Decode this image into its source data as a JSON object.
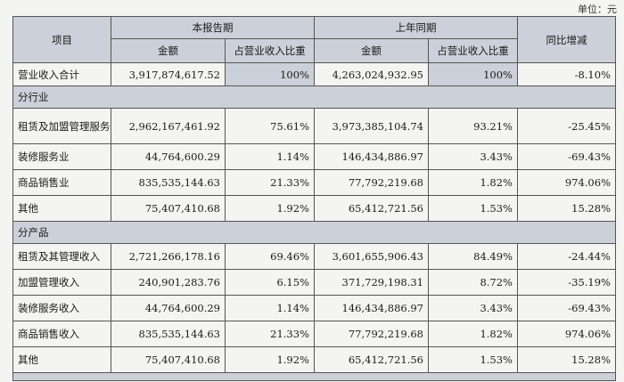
{
  "unit_label": "单位：元",
  "header": {
    "item": "项目",
    "current_period": "本报告期",
    "prior_period": "上年同期",
    "yoy": "同比增减",
    "amount": "金额",
    "ratio": "占营业收入比重"
  },
  "total": {
    "label": "营业收入合计",
    "cur_amount": "3,917,874,617.52",
    "cur_ratio": "100%",
    "prev_amount": "4,263,024,932.95",
    "prev_ratio": "100%",
    "change": "-8.10%"
  },
  "by_industry": {
    "title": "分行业",
    "rows": [
      {
        "label": "租赁及加盟管理服务业",
        "cur_amount": "2,962,167,461.92",
        "cur_ratio": "75.61%",
        "prev_amount": "3,973,385,104.74",
        "prev_ratio": "93.21%",
        "change": "-25.45%"
      },
      {
        "label": "装修服务业",
        "cur_amount": "44,764,600.29",
        "cur_ratio": "1.14%",
        "prev_amount": "146,434,886.97",
        "prev_ratio": "3.43%",
        "change": "-69.43%"
      },
      {
        "label": "商品销售业",
        "cur_amount": "835,535,144.63",
        "cur_ratio": "21.33%",
        "prev_amount": "77,792,219.68",
        "prev_ratio": "1.82%",
        "change": "974.06%"
      },
      {
        "label": "其他",
        "cur_amount": "75,407,410.68",
        "cur_ratio": "1.92%",
        "prev_amount": "65,412,721.56",
        "prev_ratio": "1.53%",
        "change": "15.28%"
      }
    ]
  },
  "by_product": {
    "title": "分产品",
    "rows": [
      {
        "label": "租赁及其管理收入",
        "cur_amount": "2,721,266,178.16",
        "cur_ratio": "69.46%",
        "prev_amount": "3,601,655,906.43",
        "prev_ratio": "84.49%",
        "change": "-24.44%"
      },
      {
        "label": "加盟管理收入",
        "cur_amount": "240,901,283.76",
        "cur_ratio": "6.15%",
        "prev_amount": "371,729,198.31",
        "prev_ratio": "8.72%",
        "change": "-35.19%"
      },
      {
        "label": "装修服务收入",
        "cur_amount": "44,764,600.29",
        "cur_ratio": "1.14%",
        "prev_amount": "146,434,886.97",
        "prev_ratio": "3.43%",
        "change": "-69.43%"
      },
      {
        "label": "商品销售收入",
        "cur_amount": "835,535,144.63",
        "cur_ratio": "21.33%",
        "prev_amount": "77,792,219.68",
        "prev_ratio": "1.82%",
        "change": "974.06%"
      },
      {
        "label": "其他",
        "cur_amount": "75,407,410.68",
        "cur_ratio": "1.92%",
        "prev_amount": "65,412,721.56",
        "prev_ratio": "1.53%",
        "change": "15.28%"
      }
    ]
  }
}
